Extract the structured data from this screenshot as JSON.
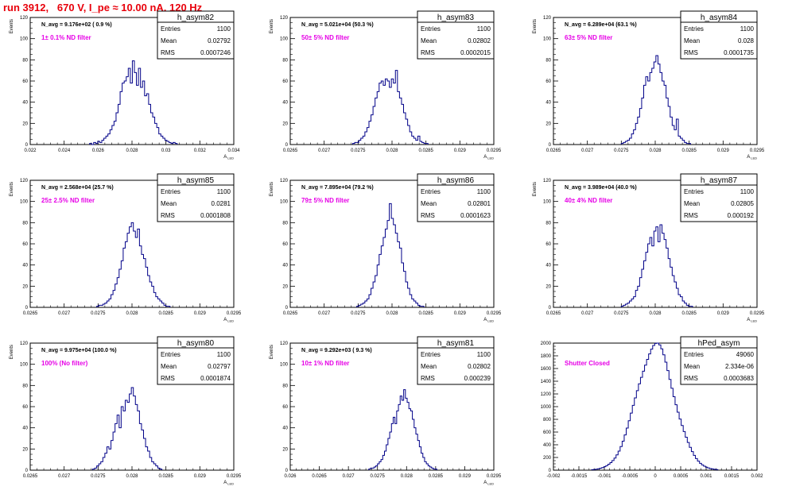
{
  "page": {
    "title": "run 3912,   670 V, I_pe ≈ 10.00 nA, 120 Hz"
  },
  "stats_labels": {
    "entries": "Entries",
    "mean": "Mean",
    "rms": "RMS"
  },
  "colors": {
    "histogram": "#000088",
    "annotation": "#e600e6",
    "title": "#e8000b",
    "axis": "#000000"
  },
  "chart_data": [
    {
      "type": "histogram",
      "name": "h_asym82",
      "ylabel": "Events",
      "xlabel": "A_LED",
      "navg": "N_avg = 9.176e+02 ( 0.9 %)",
      "annotation": "1± 0.1% ND filter",
      "entries": "1100",
      "mean": "0.02792",
      "rms": "0.0007246",
      "xlim": [
        0.022,
        0.034
      ],
      "ylim": [
        0,
        120
      ],
      "xticks": [
        0.022,
        0.024,
        0.026,
        0.028,
        0.03,
        0.032,
        0.034
      ],
      "xtick_labels": [
        "0.022",
        "0.024",
        "0.026",
        "0.028",
        "0.03",
        "0.032",
        "0.034"
      ],
      "yticks": [
        0,
        20,
        40,
        60,
        80,
        100,
        120
      ],
      "bin_start": 0.0255,
      "bin_width": 0.00012,
      "counts": [
        1,
        0,
        2,
        1,
        3,
        2,
        4,
        6,
        8,
        10,
        14,
        18,
        22,
        30,
        38,
        50,
        58,
        60,
        64,
        72,
        58,
        79,
        68,
        56,
        72,
        54,
        60,
        46,
        48,
        38,
        30,
        26,
        20,
        16,
        10,
        8,
        6,
        4,
        3,
        2,
        1,
        2,
        1
      ]
    },
    {
      "type": "histogram",
      "name": "h_asym83",
      "ylabel": "Events",
      "xlabel": "A_LED",
      "navg": "N_avg = 5.021e+04 (50.3 %)",
      "annotation": "50± 5% ND filter",
      "entries": "1100",
      "mean": "0.02802",
      "rms": "0.0002015",
      "xlim": [
        0.0265,
        0.0295
      ],
      "ylim": [
        0,
        120
      ],
      "xticks": [
        0.0265,
        0.027,
        0.0275,
        0.028,
        0.0285,
        0.029,
        0.0295
      ],
      "xtick_labels": [
        "0.0265",
        "0.027",
        "0.0275",
        "0.028",
        "0.0285",
        "0.029",
        "0.0295"
      ],
      "yticks": [
        0,
        20,
        40,
        60,
        80,
        100,
        120
      ],
      "bin_start": 0.02742,
      "bin_width": 3e-05,
      "counts": [
        1,
        2,
        2,
        4,
        6,
        8,
        12,
        16,
        22,
        28,
        36,
        44,
        50,
        58,
        60,
        56,
        62,
        60,
        54,
        62,
        58,
        70,
        50,
        44,
        38,
        30,
        24,
        18,
        12,
        8,
        6,
        4,
        8,
        3,
        2,
        1,
        1
      ]
    },
    {
      "type": "histogram",
      "name": "h_asym84",
      "ylabel": "Events",
      "xlabel": "A_LED",
      "navg": "N_avg = 6.289e+04 (63.1 %)",
      "annotation": "63± 5% ND filter",
      "entries": "1100",
      "mean": "0.028",
      "rms": "0.0001735",
      "xlim": [
        0.0265,
        0.0295
      ],
      "ylim": [
        0,
        120
      ],
      "xticks": [
        0.0265,
        0.027,
        0.0275,
        0.028,
        0.0285,
        0.029,
        0.0295
      ],
      "xtick_labels": [
        "0.0265",
        "0.027",
        "0.0275",
        "0.028",
        "0.0285",
        "0.029",
        "0.0295"
      ],
      "yticks": [
        0,
        20,
        40,
        60,
        80,
        100,
        120
      ],
      "bin_start": 0.0275,
      "bin_width": 3e-05,
      "counts": [
        1,
        2,
        3,
        4,
        6,
        10,
        14,
        20,
        26,
        34,
        44,
        56,
        64,
        60,
        68,
        72,
        78,
        84,
        76,
        68,
        60,
        56,
        44,
        36,
        26,
        18,
        14,
        24,
        8,
        6,
        4,
        2,
        1,
        1
      ]
    },
    {
      "type": "histogram",
      "name": "h_asym85",
      "ylabel": "Events",
      "xlabel": "A_LED",
      "navg": "N_avg = 2.568e+04 (25.7 %)",
      "annotation": "25± 2.5% ND filter",
      "entries": "1100",
      "mean": "0.0281",
      "rms": "0.0001808",
      "xlim": [
        0.0265,
        0.0295
      ],
      "ylim": [
        0,
        120
      ],
      "xticks": [
        0.0265,
        0.027,
        0.0275,
        0.028,
        0.0285,
        0.029,
        0.0295
      ],
      "xtick_labels": [
        "0.0265",
        "0.027",
        "0.0275",
        "0.028",
        "0.0285",
        "0.029",
        "0.0295"
      ],
      "yticks": [
        0,
        20,
        40,
        60,
        80,
        100,
        120
      ],
      "bin_start": 0.02748,
      "bin_width": 3e-05,
      "counts": [
        1,
        2,
        2,
        3,
        4,
        6,
        8,
        12,
        16,
        22,
        28,
        36,
        44,
        56,
        62,
        70,
        76,
        80,
        72,
        66,
        74,
        58,
        50,
        46,
        38,
        30,
        24,
        20,
        14,
        10,
        8,
        6,
        4,
        2,
        1,
        1
      ]
    },
    {
      "type": "histogram",
      "name": "h_asym86",
      "ylabel": "Events",
      "xlabel": "A_LED",
      "navg": "N_avg = 7.895e+04 (79.2 %)",
      "annotation": "79± 5% ND filter",
      "entries": "1100",
      "mean": "0.02801",
      "rms": "0.0001623",
      "xlim": [
        0.0265,
        0.0295
      ],
      "ylim": [
        0,
        120
      ],
      "xticks": [
        0.0265,
        0.027,
        0.0275,
        0.028,
        0.0285,
        0.029,
        0.0295
      ],
      "xtick_labels": [
        "0.0265",
        "0.027",
        "0.0275",
        "0.028",
        "0.0285",
        "0.029",
        "0.0295"
      ],
      "yticks": [
        0,
        20,
        40,
        60,
        80,
        100,
        120
      ],
      "bin_start": 0.02748,
      "bin_width": 3e-05,
      "counts": [
        1,
        2,
        3,
        4,
        6,
        8,
        12,
        18,
        24,
        30,
        40,
        50,
        58,
        66,
        74,
        82,
        98,
        84,
        78,
        70,
        62,
        56,
        42,
        34,
        24,
        18,
        12,
        8,
        6,
        4,
        2,
        1,
        1
      ]
    },
    {
      "type": "histogram",
      "name": "h_asym87",
      "ylabel": "Events",
      "xlabel": "A_LED",
      "navg": "N_avg = 3.989e+04 (40.0 %)",
      "annotation": "40± 4% ND filter",
      "entries": "1100",
      "mean": "0.02805",
      "rms": "0.000192",
      "xlim": [
        0.0265,
        0.0295
      ],
      "ylim": [
        0,
        120
      ],
      "xticks": [
        0.0265,
        0.027,
        0.0275,
        0.028,
        0.0285,
        0.029,
        0.0295
      ],
      "xtick_labels": [
        "0.0265",
        "0.027",
        "0.0275",
        "0.028",
        "0.0285",
        "0.029",
        "0.0295"
      ],
      "yticks": [
        0,
        20,
        40,
        60,
        80,
        100,
        120
      ],
      "bin_start": 0.0275,
      "bin_width": 3e-05,
      "counts": [
        1,
        2,
        3,
        4,
        6,
        8,
        10,
        16,
        20,
        28,
        36,
        44,
        52,
        60,
        66,
        58,
        72,
        76,
        62,
        78,
        70,
        64,
        56,
        46,
        38,
        30,
        24,
        18,
        12,
        10,
        6,
        4,
        2,
        1,
        1
      ]
    },
    {
      "type": "histogram",
      "name": "h_asym80",
      "ylabel": "Events",
      "xlabel": "A_LED",
      "navg": "N_avg = 9.975e+04 (100.0 %)",
      "annotation": "100% (No filter)",
      "entries": "1100",
      "mean": "0.02797",
      "rms": "0.0001874",
      "xlim": [
        0.0265,
        0.0295
      ],
      "ylim": [
        0,
        120
      ],
      "xticks": [
        0.0265,
        0.027,
        0.0275,
        0.028,
        0.0285,
        0.029,
        0.0295
      ],
      "xtick_labels": [
        "0.0265",
        "0.027",
        "0.0275",
        "0.028",
        "0.0285",
        "0.029",
        "0.0295"
      ],
      "yticks": [
        0,
        20,
        40,
        60,
        80,
        100,
        120
      ],
      "bin_start": 0.02742,
      "bin_width": 3e-05,
      "counts": [
        1,
        2,
        4,
        6,
        8,
        12,
        16,
        22,
        20,
        28,
        36,
        44,
        52,
        40,
        60,
        56,
        66,
        64,
        72,
        78,
        70,
        62,
        56,
        44,
        38,
        30,
        22,
        18,
        12,
        8,
        6,
        4,
        2,
        1
      ]
    },
    {
      "type": "histogram",
      "name": "h_asym81",
      "ylabel": "Events",
      "xlabel": "A_LED",
      "navg": "N_avg = 9.292e+03 ( 9.3 %)",
      "annotation": "10± 1% ND filter",
      "entries": "1100",
      "mean": "0.02802",
      "rms": "0.000239",
      "xlim": [
        0.026,
        0.0295
      ],
      "ylim": [
        0,
        120
      ],
      "xticks": [
        0.026,
        0.0265,
        0.027,
        0.0275,
        0.028,
        0.0285,
        0.029,
        0.0295
      ],
      "xtick_labels": [
        "0.026",
        "0.0265",
        "0.027",
        "0.0275",
        "0.028",
        "0.0285",
        "0.029",
        "0.0295"
      ],
      "yticks": [
        0,
        20,
        40,
        60,
        80,
        100,
        120
      ],
      "bin_start": 0.02735,
      "bin_width": 3e-05,
      "counts": [
        1,
        2,
        2,
        3,
        4,
        6,
        8,
        10,
        14,
        18,
        24,
        30,
        36,
        44,
        50,
        44,
        56,
        62,
        70,
        66,
        76,
        68,
        64,
        58,
        56,
        48,
        40,
        34,
        28,
        22,
        16,
        12,
        8,
        6,
        4,
        3,
        2,
        1,
        1
      ]
    },
    {
      "type": "histogram",
      "name": "hPed_asym",
      "ylabel": "",
      "xlabel": "",
      "navg": "",
      "annotation": "Shutter Closed",
      "entries": "49060",
      "mean": "2.334e-06",
      "rms": "0.0003683",
      "xlim": [
        -0.002,
        0.002
      ],
      "ylim": [
        0,
        2000
      ],
      "xticks": [
        -0.002,
        -0.0015,
        -0.001,
        -0.0005,
        0,
        0.0005,
        0.001,
        0.0015,
        0.002
      ],
      "xtick_labels": [
        "-0.002",
        "-0.0015",
        "-0.001",
        "-0.0005",
        "0",
        "0.0005",
        "0.001",
        "0.0015",
        "0.002"
      ],
      "yticks": [
        0,
        200,
        400,
        600,
        800,
        1000,
        1200,
        1400,
        1600,
        1800,
        2000
      ],
      "gaussian": {
        "mean": 2e-06,
        "sigma": 0.00037,
        "peak": 1960,
        "bin_width": 4e-05,
        "from": -0.00125,
        "to": 0.00125
      }
    }
  ]
}
